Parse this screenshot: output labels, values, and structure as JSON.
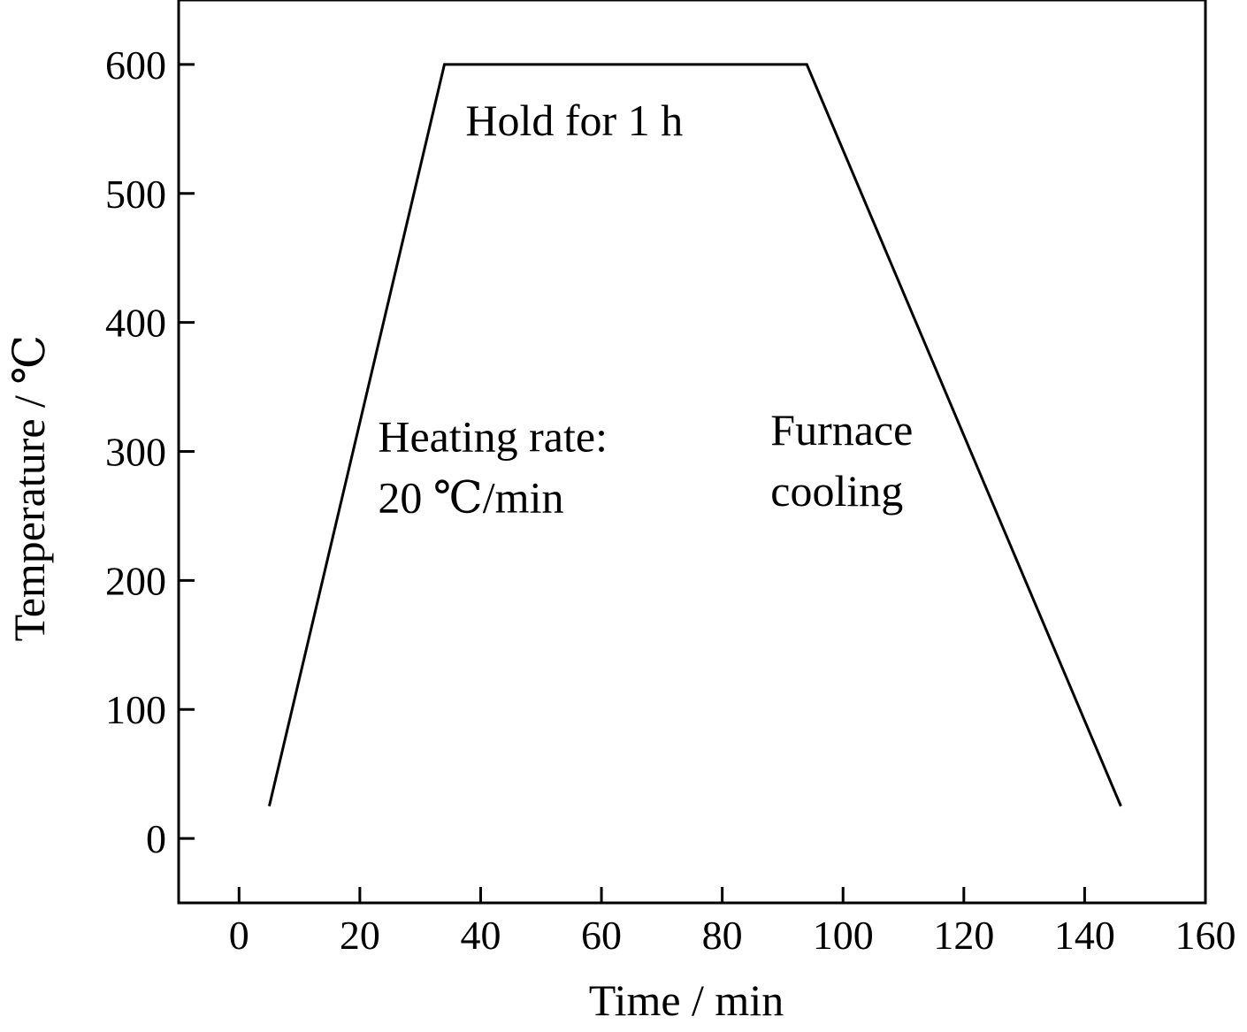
{
  "chart_data": {
    "type": "line",
    "title": "",
    "xlabel": "Time / min",
    "ylabel": "Temperature / ℃",
    "xlim": [
      -10,
      160
    ],
    "ylim": [
      -50,
      650
    ],
    "xticks": [
      0,
      20,
      40,
      60,
      80,
      100,
      120,
      140,
      160
    ],
    "yticks": [
      0,
      100,
      200,
      300,
      400,
      500,
      600
    ],
    "grid": false,
    "legend": "none",
    "series": [
      {
        "x": [
          5,
          34,
          94,
          146
        ],
        "y": [
          25,
          600,
          600,
          25
        ],
        "color": "#000000"
      }
    ],
    "annotations": [
      {
        "lines": [
          "Hold for 1 h"
        ],
        "x": 37.5,
        "y": 545
      },
      {
        "lines": [
          "Heating rate:",
          "20 ℃/min"
        ],
        "x": 23,
        "y": 300
      },
      {
        "lines": [
          "Furnace",
          "cooling"
        ],
        "x": 88,
        "y": 305
      }
    ]
  }
}
